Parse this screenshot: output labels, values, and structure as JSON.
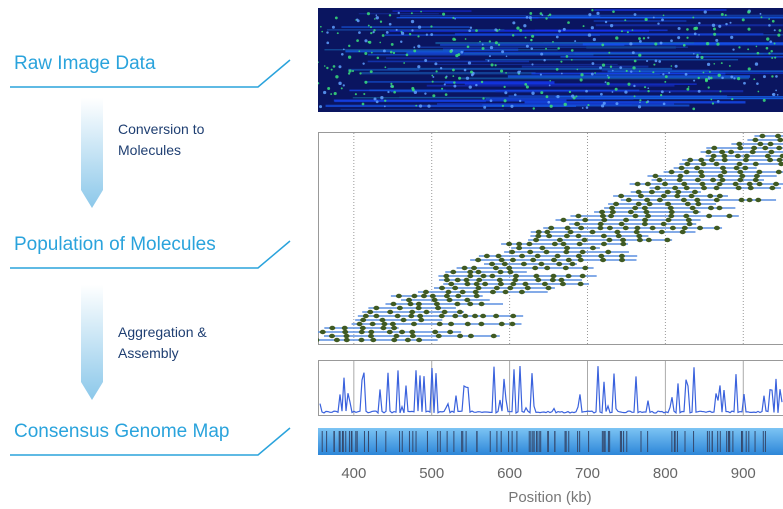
{
  "labels": {
    "raw_image": "Raw Image Data",
    "population": "Population of Molecules",
    "consensus": "Consensus Genome Map"
  },
  "steps": [
    {
      "lines": [
        "Conversion to",
        "Molecules"
      ]
    },
    {
      "lines": [
        "Aggregation &",
        "Assembly"
      ]
    }
  ],
  "axis": {
    "label": "Position (kb)",
    "xlim": [
      354,
      951
    ],
    "xticks": [
      400,
      500,
      600,
      700,
      800,
      900
    ]
  }
}
